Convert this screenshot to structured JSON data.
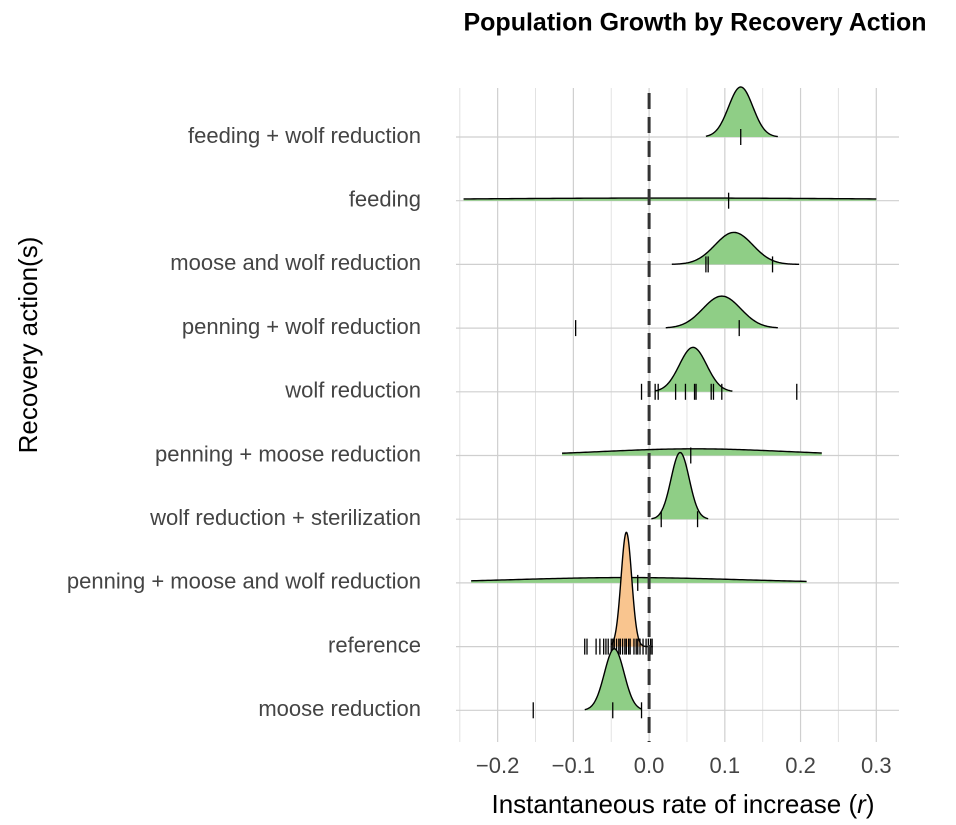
{
  "chart_data": {
    "type": "ridgeline",
    "title": "Population Growth by Recovery Action",
    "xlabel_parts": [
      "Instantaneous rate of increase (",
      "r",
      ")"
    ],
    "ylabel": "Recovery action(s)",
    "categories": [
      "feeding + wolf reduction",
      "feeding",
      "moose and wolf reduction",
      "penning + wolf reduction",
      "wolf reduction",
      "penning + moose reduction",
      "wolf reduction + sterilization",
      "penning + moose and wolf reduction",
      "reference",
      "moose reduction"
    ],
    "ridges": [
      {
        "mode": 0.121,
        "sd": 0.016,
        "min": 0.075,
        "max": 0.17,
        "color": "#8fce86",
        "rug": [
          0.121
        ]
      },
      {
        "mode": 0.03,
        "sd": 0.3,
        "min": -0.245,
        "max": 0.3,
        "color": "#8fce86",
        "rug": [
          0.105
        ]
      },
      {
        "mode": 0.112,
        "sd": 0.025,
        "min": 0.03,
        "max": 0.198,
        "color": "#8fce86",
        "rug": [
          0.075,
          0.078,
          0.163
        ]
      },
      {
        "mode": 0.096,
        "sd": 0.025,
        "min": 0.022,
        "max": 0.17,
        "color": "#8fce86",
        "rug": [
          -0.097,
          0.119
        ]
      },
      {
        "mode": 0.058,
        "sd": 0.018,
        "min": 0.008,
        "max": 0.11,
        "color": "#8fce86",
        "rug": [
          -0.01,
          0.008,
          0.012,
          0.035,
          0.048,
          0.06,
          0.062,
          0.082,
          0.085,
          0.096,
          0.195
        ]
      },
      {
        "mode": 0.06,
        "sd": 0.12,
        "min": -0.115,
        "max": 0.228,
        "color": "#8fce86",
        "rug": [
          0.055
        ]
      },
      {
        "mode": 0.041,
        "sd": 0.012,
        "min": 0.003,
        "max": 0.078,
        "color": "#8fce86",
        "rug": [
          0.016,
          0.064
        ]
      },
      {
        "mode": -0.03,
        "sd": 0.15,
        "min": -0.235,
        "max": 0.208,
        "color": "#8fce86",
        "rug": [
          -0.015
        ]
      },
      {
        "mode": -0.03,
        "sd": 0.007,
        "min": -0.05,
        "max": 0.005,
        "color": "#f9c58f",
        "rug": [
          -0.085,
          -0.082,
          -0.07,
          -0.065,
          -0.06,
          -0.057,
          -0.054,
          -0.05,
          -0.048,
          -0.046,
          -0.043,
          -0.04,
          -0.038,
          -0.035,
          -0.032,
          -0.03,
          -0.027,
          -0.025,
          -0.02,
          -0.017,
          -0.015,
          -0.012,
          -0.008,
          -0.004,
          -0.001,
          0.002,
          0.004
        ]
      },
      {
        "mode": -0.046,
        "sd": 0.013,
        "min": -0.085,
        "max": -0.01,
        "color": "#8fce86",
        "rug": [
          -0.153,
          -0.048,
          -0.01
        ]
      }
    ],
    "xlim": [
      -0.255,
      0.33
    ],
    "xticks": [
      {
        "value": -0.2,
        "label": "−0.2"
      },
      {
        "value": -0.1,
        "label": "−0.1"
      },
      {
        "value": 0,
        "label": "0.0"
      },
      0.1,
      0.2,
      0.3
    ],
    "minor_xticks": [
      -0.25,
      -0.15,
      -0.05,
      0.05,
      0.15,
      0.25
    ],
    "ref_line": 0,
    "grid": true
  }
}
